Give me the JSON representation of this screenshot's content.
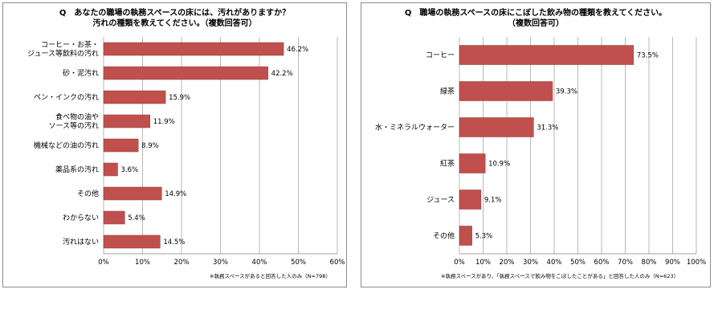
{
  "charts": [
    {
      "title_line1": "Q　あなたの職場の執務スペースの床には、汚れがありますか？",
      "title_line2": "汚れの種類を教えてください。（複数回答可）",
      "note": "※執務スペースがあると回答した人のみ（N=798）"
    },
    {
      "title_line1": "Q　職場の執務スペースの床にこぼした飲み物の種類を教えてください。",
      "title_line2": "（複数回答可）",
      "note": "※執務スペースがあり、「執務スペースで飲み物をこぼしたことがある」と回答した人のみ（N=623）"
    }
  ],
  "colors": {
    "bar": "#c0504d",
    "bar_edge": "#943634",
    "grid": "#a6a6a6",
    "border": "#8c8c8c"
  },
  "chart_data": [
    {
      "type": "bar",
      "orientation": "horizontal",
      "categories": [
        [
          "コーヒー・お茶・",
          "ジュース等飲料の汚れ"
        ],
        [
          "砂・泥汚れ"
        ],
        [
          "ペン・インクの汚れ"
        ],
        [
          "食べ物の油や",
          "ソース等の汚れ"
        ],
        [
          "機械などの油の汚れ"
        ],
        [
          "薬品系の汚れ"
        ],
        [
          "その他"
        ],
        [
          "わからない"
        ],
        [
          "汚れはない"
        ]
      ],
      "values": [
        46.2,
        42.2,
        15.9,
        11.9,
        8.9,
        3.6,
        14.9,
        5.4,
        14.5
      ],
      "value_labels": [
        "46.2%",
        "42.2%",
        "15.9%",
        "11.9%",
        "8.9%",
        "3.6%",
        "14.9%",
        "5.4%",
        "14.5%"
      ],
      "xlim": [
        0,
        60
      ],
      "ticks": [
        "0%",
        "10%",
        "20%",
        "30%",
        "40%",
        "50%",
        "60%"
      ],
      "grid": true
    },
    {
      "type": "bar",
      "orientation": "horizontal",
      "categories": [
        [
          "コーヒー"
        ],
        [
          "緑茶"
        ],
        [
          "水・ミネラルウォーター"
        ],
        [
          "紅茶"
        ],
        [
          "ジュース"
        ],
        [
          "その他"
        ]
      ],
      "values": [
        73.5,
        39.3,
        31.3,
        10.9,
        9.1,
        5.3
      ],
      "value_labels": [
        "73.5%",
        "39.3%",
        "31.3%",
        "10.9%",
        "9.1%",
        "5.3%"
      ],
      "xlim": [
        0,
        100
      ],
      "ticks": [
        "0%",
        "10%",
        "20%",
        "30%",
        "40%",
        "50%",
        "60%",
        "70%",
        "80%",
        "90%",
        "100%"
      ],
      "grid": true
    }
  ]
}
